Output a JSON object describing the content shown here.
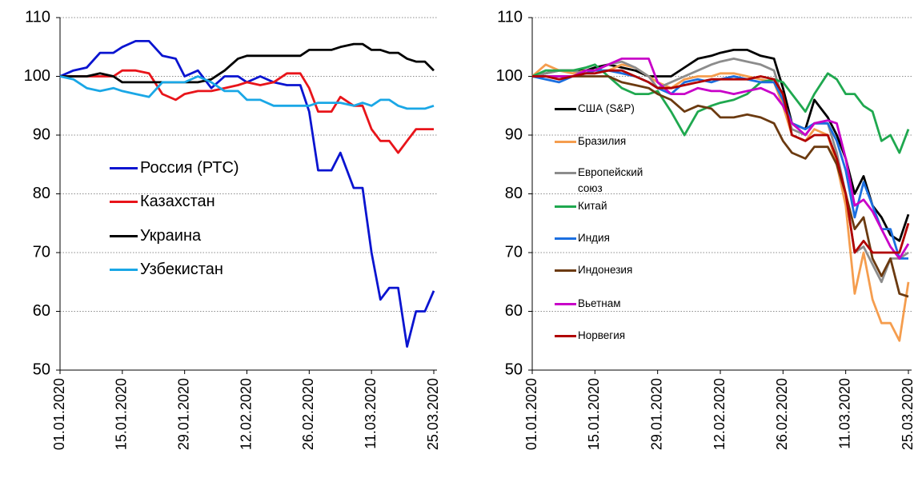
{
  "chart_data": [
    {
      "type": "line",
      "x": [
        "01.01.2020",
        "04.01.2020",
        "07.01.2020",
        "10.01.2020",
        "13.01.2020",
        "15.01.2020",
        "18.01.2020",
        "21.01.2020",
        "24.01.2020",
        "27.01.2020",
        "29.01.2020",
        "01.02.2020",
        "04.02.2020",
        "07.02.2020",
        "10.02.2020",
        "12.02.2020",
        "15.02.2020",
        "18.02.2020",
        "21.02.2020",
        "24.02.2020",
        "26.02.2020",
        "28.02.2020",
        "02.03.2020",
        "04.03.2020",
        "07.03.2020",
        "09.03.2020",
        "11.03.2020",
        "13.03.2020",
        "15.03.2020",
        "17.03.2020",
        "19.03.2020",
        "21.03.2020",
        "23.03.2020",
        "25.03.2020"
      ],
      "xlim": [
        "01.01.2020",
        "25.03.2020"
      ],
      "xticks": [
        "01.01.2020",
        "15.01.2020",
        "29.01.2020",
        "12.02.2020",
        "26.02.2020",
        "11.03.2020",
        "25.03.2020"
      ],
      "ylim": [
        50,
        110
      ],
      "yticks": [
        50,
        60,
        70,
        80,
        90,
        100,
        110
      ],
      "grid": true,
      "series": [
        {
          "name": "Россия (РТС)",
          "color": "#0a14d0",
          "values": [
            100,
            101,
            101.5,
            104,
            104,
            105,
            106,
            106,
            103.5,
            103,
            100,
            101,
            98,
            100,
            100,
            99,
            100,
            99,
            98.5,
            98.5,
            94,
            84,
            84,
            87,
            81,
            81,
            70,
            62,
            64,
            64,
            54,
            60,
            60,
            63.5
          ]
        },
        {
          "name": "Казахстан",
          "color": "#e8141a",
          "values": [
            100,
            100,
            100,
            100,
            100,
            101,
            101,
            100.5,
            97,
            96,
            97,
            97.5,
            97.5,
            98,
            98.5,
            99,
            98.5,
            99,
            100.5,
            100.5,
            98,
            94,
            94,
            96.5,
            95,
            95,
            91,
            89,
            89,
            87,
            89,
            91,
            91,
            91
          ]
        },
        {
          "name": "Украина",
          "color": "#000000",
          "values": [
            100,
            100,
            100,
            100.5,
            100,
            99,
            99,
            99,
            99,
            99,
            99,
            99,
            99.5,
            101,
            103,
            103.5,
            103.5,
            103.5,
            103.5,
            103.5,
            104.5,
            104.5,
            104.5,
            105,
            105.5,
            105.5,
            104.5,
            104.5,
            104,
            104,
            103,
            102.5,
            102.5,
            101
          ]
        },
        {
          "name": "Узбекистан",
          "color": "#1aa7e6",
          "values": [
            100,
            99.5,
            98,
            97.5,
            98,
            97.5,
            97,
            96.5,
            99,
            99,
            99,
            100,
            99,
            97.5,
            97.5,
            96,
            96,
            95,
            95,
            95,
            95,
            95.5,
            95.5,
            95.5,
            95,
            95.5,
            95,
            96,
            96,
            95,
            94.5,
            94.5,
            94.5,
            95
          ]
        }
      ]
    },
    {
      "type": "line",
      "x": [
        "01.01.2020",
        "04.01.2020",
        "07.01.2020",
        "10.01.2020",
        "13.01.2020",
        "15.01.2020",
        "18.01.2020",
        "21.01.2020",
        "24.01.2020",
        "27.01.2020",
        "29.01.2020",
        "01.02.2020",
        "04.02.2020",
        "07.02.2020",
        "10.02.2020",
        "12.02.2020",
        "15.02.2020",
        "18.02.2020",
        "21.02.2020",
        "24.02.2020",
        "26.02.2020",
        "28.02.2020",
        "02.03.2020",
        "04.03.2020",
        "07.03.2020",
        "09.03.2020",
        "11.03.2020",
        "13.03.2020",
        "15.03.2020",
        "17.03.2020",
        "19.03.2020",
        "21.03.2020",
        "23.03.2020",
        "25.03.2020"
      ],
      "xlim": [
        "01.01.2020",
        "25.03.2020"
      ],
      "xticks": [
        "01.01.2020",
        "15.01.2020",
        "29.01.2020",
        "12.02.2020",
        "26.02.2020",
        "11.03.2020",
        "25.03.2020"
      ],
      "ylim": [
        50,
        110
      ],
      "yticks": [
        50,
        60,
        70,
        80,
        90,
        100,
        110
      ],
      "grid": true,
      "series": [
        {
          "name": "США (S&P)",
          "color": "#000000",
          "values": [
            100,
            100.5,
            101,
            101,
            101,
            101.5,
            102,
            101.5,
            101,
            100,
            100,
            100,
            101.5,
            103,
            103.5,
            104,
            104.5,
            104.5,
            103.5,
            103,
            98,
            92,
            91,
            96,
            93,
            90,
            86,
            80,
            83,
            78,
            76,
            73,
            72,
            76.5
          ]
        },
        {
          "name": "Бразилия",
          "color": "#f59d4e",
          "values": [
            100,
            102,
            101,
            100.5,
            101,
            101,
            101,
            102,
            101.5,
            100,
            99,
            98,
            99.5,
            100,
            100,
            100.5,
            100.5,
            100,
            99.5,
            99,
            95,
            90,
            89,
            91,
            90,
            85,
            78,
            63,
            70,
            62,
            58,
            58,
            55,
            65
          ]
        },
        {
          "name": "Европейский союз",
          "color": "#8c8c8c",
          "values": [
            100,
            100.5,
            101,
            101,
            100.5,
            101,
            102,
            102.5,
            101.5,
            100,
            98,
            99,
            100,
            101,
            102,
            102.5,
            103,
            102.5,
            102,
            101,
            96,
            91,
            90,
            92,
            92,
            87,
            80,
            70,
            71,
            68,
            65,
            69,
            69,
            70
          ]
        },
        {
          "name": "Китай",
          "color": "#1fa84f",
          "values": [
            100,
            101,
            101,
            101,
            101.5,
            102,
            100,
            98,
            97,
            97,
            97.5,
            94,
            90,
            94,
            95,
            95.5,
            96,
            97,
            99,
            99.5,
            99,
            97,
            94,
            97,
            100.5,
            99.5,
            97,
            97,
            95,
            94,
            89,
            90,
            87,
            91
          ]
        },
        {
          "name": "Индия",
          "color": "#1b6fe0",
          "values": [
            100,
            99.5,
            99,
            100,
            100.5,
            101,
            101,
            100.5,
            100,
            99,
            98,
            97,
            99,
            99.5,
            99,
            99.5,
            100,
            99.5,
            99,
            99,
            96,
            92,
            91,
            92,
            92,
            89,
            84,
            76,
            82,
            78,
            74,
            74,
            69,
            69
          ]
        },
        {
          "name": "Индонезия",
          "color": "#6b3a10",
          "values": [
            100,
            100,
            100,
            100,
            100,
            100,
            100,
            99,
            98.5,
            98,
            97,
            96,
            94,
            95,
            94.5,
            93,
            93,
            93.5,
            93,
            92,
            89,
            87,
            86,
            88,
            88,
            85,
            80,
            74,
            76,
            69,
            66,
            69,
            63,
            62.5
          ]
        },
        {
          "name": "Вьетнам",
          "color": "#c800c8",
          "values": [
            100,
            100,
            100,
            100,
            101,
            101,
            102,
            103,
            103,
            103,
            99,
            97,
            97,
            98,
            97.5,
            97.5,
            97,
            97.5,
            98,
            97,
            95,
            92,
            90,
            92,
            92.5,
            92,
            86,
            78,
            79,
            77,
            74,
            71,
            69,
            71.5
          ]
        },
        {
          "name": "Норвегия",
          "color": "#b00000",
          "values": [
            100,
            100,
            99.5,
            100,
            100.5,
            100.5,
            101,
            101,
            100,
            99,
            98,
            98,
            98.5,
            99,
            99.5,
            99.5,
            99.5,
            99.5,
            100,
            99.5,
            97,
            90,
            89,
            90,
            90,
            86,
            80,
            70,
            72,
            70,
            70,
            70,
            70,
            75
          ]
        }
      ]
    }
  ]
}
